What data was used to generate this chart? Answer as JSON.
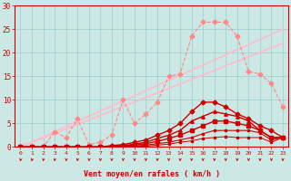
{
  "bg_color": "#cce8e4",
  "grid_color": "#99cccc",
  "xlabel": "Vent moyen/en rafales ( km/h )",
  "xlabel_color": "#cc0000",
  "tick_color": "#cc0000",
  "xlim": [
    0,
    23
  ],
  "ylim": [
    0,
    30
  ],
  "yticks": [
    0,
    5,
    10,
    15,
    20,
    25,
    30
  ],
  "xticks": [
    0,
    1,
    2,
    3,
    4,
    5,
    6,
    7,
    8,
    9,
    10,
    11,
    12,
    13,
    14,
    15,
    16,
    17,
    18,
    19,
    20,
    21,
    22,
    23
  ],
  "series": [
    {
      "x": [
        0,
        23
      ],
      "y": [
        0.0,
        22.0
      ],
      "color": "#ffbbcc",
      "marker": null,
      "markersize": 0,
      "linewidth": 1.2,
      "alpha": 1.0,
      "linestyle": "-"
    },
    {
      "x": [
        0,
        23
      ],
      "y": [
        0.0,
        25.0
      ],
      "color": "#ffbbcc",
      "marker": null,
      "markersize": 0,
      "linewidth": 1.2,
      "alpha": 1.0,
      "linestyle": "-"
    },
    {
      "x": [
        0,
        1,
        2,
        3,
        4,
        5,
        6,
        7,
        8,
        9,
        10,
        11,
        12,
        13,
        14,
        15,
        16,
        17,
        18,
        19,
        20,
        21,
        22,
        23
      ],
      "y": [
        0.0,
        0.0,
        0.0,
        3.2,
        2.0,
        6.0,
        0.5,
        1.0,
        2.5,
        10.0,
        5.0,
        7.0,
        9.5,
        15.0,
        15.5,
        23.5,
        26.5,
        26.5,
        26.5,
        23.5,
        16.0,
        15.5,
        13.5,
        8.5
      ],
      "color": "#ff8888",
      "marker": "D",
      "markersize": 2.5,
      "linewidth": 0.8,
      "alpha": 1.0,
      "linestyle": "--"
    },
    {
      "x": [
        0,
        1,
        2,
        3,
        4,
        5,
        6,
        7,
        8,
        9,
        10,
        11,
        12,
        13,
        14,
        15,
        16,
        17,
        18,
        19,
        20,
        21,
        22,
        23
      ],
      "y": [
        0.0,
        0.0,
        0.0,
        0.0,
        0.0,
        0.0,
        0.0,
        0.0,
        0.3,
        0.5,
        1.0,
        1.5,
        2.5,
        3.5,
        5.0,
        7.5,
        9.5,
        9.5,
        8.5,
        7.0,
        6.0,
        4.5,
        3.5,
        2.0
      ],
      "color": "#cc0000",
      "marker": "D",
      "markersize": 2.5,
      "linewidth": 1.0,
      "alpha": 1.0,
      "linestyle": "-"
    },
    {
      "x": [
        0,
        1,
        2,
        3,
        4,
        5,
        6,
        7,
        8,
        9,
        10,
        11,
        12,
        13,
        14,
        15,
        16,
        17,
        18,
        19,
        20,
        21,
        22,
        23
      ],
      "y": [
        0.0,
        0.0,
        0.0,
        0.0,
        0.0,
        0.0,
        0.0,
        0.0,
        0.2,
        0.3,
        0.6,
        1.0,
        1.8,
        2.5,
        3.5,
        5.5,
        6.5,
        7.5,
        7.0,
        6.5,
        5.5,
        3.5,
        2.0,
        2.0
      ],
      "color": "#cc0000",
      "marker": "^",
      "markersize": 2.5,
      "linewidth": 1.0,
      "alpha": 1.0,
      "linestyle": "-"
    },
    {
      "x": [
        0,
        1,
        2,
        3,
        4,
        5,
        6,
        7,
        8,
        9,
        10,
        11,
        12,
        13,
        14,
        15,
        16,
        17,
        18,
        19,
        20,
        21,
        22,
        23
      ],
      "y": [
        0.0,
        0.0,
        0.0,
        0.0,
        0.0,
        0.0,
        0.0,
        0.0,
        0.1,
        0.2,
        0.4,
        0.7,
        1.2,
        1.8,
        2.5,
        3.5,
        4.5,
        5.5,
        5.5,
        5.0,
        4.5,
        3.5,
        2.0,
        2.0
      ],
      "color": "#cc0000",
      "marker": "s",
      "markersize": 2.5,
      "linewidth": 1.0,
      "alpha": 1.0,
      "linestyle": "-"
    },
    {
      "x": [
        0,
        1,
        2,
        3,
        4,
        5,
        6,
        7,
        8,
        9,
        10,
        11,
        12,
        13,
        14,
        15,
        16,
        17,
        18,
        19,
        20,
        21,
        22,
        23
      ],
      "y": [
        0.0,
        0.0,
        0.0,
        0.0,
        0.0,
        0.0,
        0.0,
        0.0,
        0.0,
        0.1,
        0.2,
        0.4,
        0.7,
        1.0,
        1.5,
        2.0,
        2.8,
        3.5,
        3.5,
        3.5,
        3.5,
        3.0,
        1.5,
        2.0
      ],
      "color": "#cc0000",
      "marker": "s",
      "markersize": 2.0,
      "linewidth": 0.8,
      "alpha": 1.0,
      "linestyle": "-"
    },
    {
      "x": [
        0,
        1,
        2,
        3,
        4,
        5,
        6,
        7,
        8,
        9,
        10,
        11,
        12,
        13,
        14,
        15,
        16,
        17,
        18,
        19,
        20,
        21,
        22,
        23
      ],
      "y": [
        0.0,
        0.0,
        0.0,
        0.0,
        0.0,
        0.0,
        0.0,
        0.0,
        0.0,
        0.0,
        0.1,
        0.2,
        0.4,
        0.6,
        1.0,
        1.3,
        1.8,
        2.0,
        2.2,
        2.0,
        2.0,
        2.0,
        1.0,
        2.0
      ],
      "color": "#cc0000",
      "marker": "s",
      "markersize": 1.5,
      "linewidth": 0.7,
      "alpha": 1.0,
      "linestyle": "-"
    }
  ],
  "arrow_color": "#cc0000"
}
